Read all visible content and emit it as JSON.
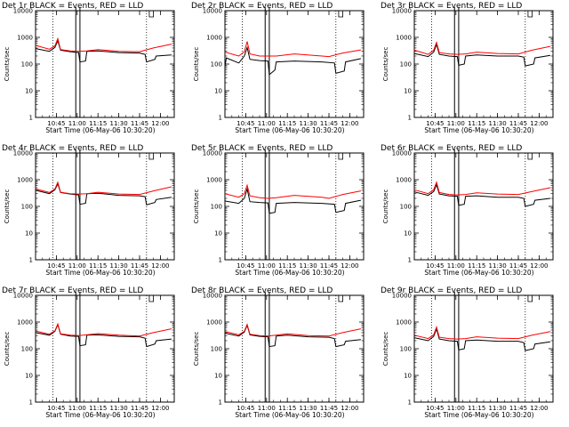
{
  "chart_data": [
    {
      "type": "line",
      "title": "Det 1r BLACK = Events, RED = LLD",
      "xlabel": "Start Time (06-May-06 10:30:20)",
      "ylabel": "Counts/sec",
      "yscale": "log",
      "ylim": [
        1,
        10000
      ],
      "xlim": [
        "10:30",
        "12:10"
      ],
      "xticks": [
        "10:45",
        "11:00",
        "11:15",
        "11:30",
        "11:45",
        "12:00"
      ],
      "series": [
        {
          "color": "#000000",
          "x": [
            "10:30",
            "10:40",
            "10:44",
            "10:46",
            "10:48",
            "10:55",
            "11:01",
            "11:02",
            "11:06",
            "11:07",
            "11:15",
            "11:30",
            "11:45",
            "11:49",
            "11:50",
            "11:56",
            "11:57",
            "12:08"
          ],
          "y": [
            380,
            300,
            420,
            750,
            330,
            290,
            270,
            120,
            130,
            300,
            310,
            270,
            260,
            230,
            120,
            150,
            200,
            220
          ]
        },
        {
          "color": "#ff0000",
          "x": [
            "10:30",
            "10:40",
            "10:44",
            "10:46",
            "10:48",
            "10:55",
            "11:01",
            "11:07",
            "11:15",
            "11:30",
            "11:45",
            "11:55",
            "12:08"
          ],
          "y": [
            500,
            360,
            480,
            900,
            350,
            310,
            300,
            310,
            350,
            300,
            290,
            400,
            560
          ]
        }
      ]
    },
    {
      "type": "line",
      "title": "Det 2r BLACK = Events, RED = LLD",
      "xlabel": "Start Time (06-May-06 10:30:20)",
      "ylabel": "Counts/sec",
      "yscale": "log",
      "ylim": [
        1,
        10000
      ],
      "xlim": [
        "10:30",
        "12:10"
      ],
      "xticks": [
        "10:45",
        "11:00",
        "11:15",
        "11:30",
        "11:45",
        "12:00"
      ],
      "series": [
        {
          "color": "#000000",
          "x": [
            "10:30",
            "10:31",
            "10:40",
            "10:44",
            "10:46",
            "10:48",
            "10:55",
            "11:01",
            "11:02",
            "11:06",
            "11:07",
            "11:20",
            "11:40",
            "11:49",
            "11:50",
            "11:56",
            "11:57",
            "12:08"
          ],
          "y": [
            80,
            170,
            110,
            200,
            420,
            150,
            135,
            130,
            40,
            60,
            120,
            130,
            120,
            110,
            45,
            55,
            120,
            160
          ]
        },
        {
          "color": "#ff0000",
          "x": [
            "10:30",
            "10:40",
            "10:44",
            "10:46",
            "10:48",
            "10:55",
            "11:01",
            "11:07",
            "11:20",
            "11:40",
            "11:45",
            "11:55",
            "12:08"
          ],
          "y": [
            280,
            200,
            290,
            700,
            240,
            200,
            200,
            200,
            240,
            200,
            190,
            260,
            340
          ]
        }
      ]
    },
    {
      "type": "line",
      "title": "Det 3r BLACK = Events, RED = LLD",
      "xlabel": "Start Time (06-May-06 10:30:20)",
      "ylabel": "Counts/sec",
      "yscale": "log",
      "ylim": [
        1,
        10000
      ],
      "xlim": [
        "10:30",
        "12:10"
      ],
      "xticks": [
        "10:45",
        "11:00",
        "11:15",
        "11:30",
        "11:45",
        "12:00"
      ],
      "series": [
        {
          "color": "#000000",
          "x": [
            "10:30",
            "10:40",
            "10:44",
            "10:46",
            "10:48",
            "10:55",
            "11:01",
            "11:02",
            "11:06",
            "11:07",
            "11:15",
            "11:30",
            "11:45",
            "11:49",
            "11:50",
            "11:56",
            "11:57",
            "12:08"
          ],
          "y": [
            250,
            190,
            280,
            550,
            230,
            200,
            190,
            90,
            100,
            200,
            220,
            200,
            200,
            180,
            85,
            100,
            170,
            210
          ]
        },
        {
          "color": "#ff0000",
          "x": [
            "10:30",
            "10:40",
            "10:44",
            "10:46",
            "10:48",
            "10:55",
            "11:01",
            "11:07",
            "11:15",
            "11:30",
            "11:45",
            "11:55",
            "12:08"
          ],
          "y": [
            330,
            230,
            330,
            650,
            270,
            240,
            230,
            240,
            280,
            250,
            240,
            330,
            460
          ]
        }
      ]
    },
    {
      "type": "line",
      "title": "Det 4r BLACK = Events, RED = LLD",
      "xlabel": "Start Time (06-May-06 10:30:20)",
      "ylabel": "Counts/sec",
      "yscale": "log",
      "ylim": [
        1,
        10000
      ],
      "xlim": [
        "10:30",
        "12:10"
      ],
      "xticks": [
        "10:45",
        "11:00",
        "11:15",
        "11:30",
        "11:45",
        "12:00"
      ],
      "series": [
        {
          "color": "#000000",
          "x": [
            "10:30",
            "10:40",
            "10:44",
            "10:46",
            "10:48",
            "10:55",
            "11:01",
            "11:02",
            "11:06",
            "11:07",
            "11:15",
            "11:30",
            "11:45",
            "11:49",
            "11:50",
            "11:56",
            "11:57",
            "12:08"
          ],
          "y": [
            400,
            300,
            420,
            700,
            330,
            290,
            270,
            120,
            130,
            300,
            310,
            260,
            250,
            230,
            115,
            140,
            180,
            220
          ]
        },
        {
          "color": "#ff0000",
          "x": [
            "10:30",
            "10:40",
            "10:44",
            "10:46",
            "10:48",
            "10:55",
            "11:01",
            "11:07",
            "11:15",
            "11:30",
            "11:45",
            "11:55",
            "12:08"
          ],
          "y": [
            450,
            330,
            450,
            800,
            340,
            300,
            290,
            300,
            340,
            290,
            280,
            380,
            540
          ]
        }
      ]
    },
    {
      "type": "line",
      "title": "Det 5r BLACK = Events, RED = LLD",
      "xlabel": "Start Time (06-May-06 10:30:20)",
      "ylabel": "Counts/sec",
      "yscale": "log",
      "ylim": [
        1,
        10000
      ],
      "xlim": [
        "10:30",
        "12:10"
      ],
      "xticks": [
        "10:45",
        "11:00",
        "11:15",
        "11:30",
        "11:45",
        "12:00"
      ],
      "series": [
        {
          "color": "#000000",
          "x": [
            "10:30",
            "10:40",
            "10:44",
            "10:46",
            "10:48",
            "10:55",
            "11:01",
            "11:02",
            "11:06",
            "11:07",
            "11:20",
            "11:40",
            "11:49",
            "11:50",
            "11:56",
            "11:57",
            "12:08"
          ],
          "y": [
            160,
            130,
            200,
            450,
            150,
            140,
            135,
            55,
            60,
            130,
            140,
            130,
            120,
            60,
            70,
            130,
            170
          ]
        },
        {
          "color": "#ff0000",
          "x": [
            "10:30",
            "10:40",
            "10:44",
            "10:46",
            "10:48",
            "10:55",
            "11:01",
            "11:07",
            "11:20",
            "11:40",
            "11:45",
            "11:55",
            "12:08"
          ],
          "y": [
            300,
            220,
            300,
            620,
            250,
            210,
            200,
            210,
            260,
            220,
            200,
            280,
            380
          ]
        }
      ]
    },
    {
      "type": "line",
      "title": "Det 6r BLACK = Events, RED = LLD",
      "xlabel": "Start Time (06-May-06 10:30:20)",
      "ylabel": "Counts/sec",
      "yscale": "log",
      "ylim": [
        1,
        10000
      ],
      "xlim": [
        "10:30",
        "12:10"
      ],
      "xticks": [
        "10:45",
        "11:00",
        "11:15",
        "11:30",
        "11:45",
        "12:00"
      ],
      "series": [
        {
          "color": "#000000",
          "x": [
            "10:30",
            "10:40",
            "10:44",
            "10:46",
            "10:48",
            "10:55",
            "11:01",
            "11:02",
            "11:06",
            "11:07",
            "11:15",
            "11:30",
            "11:45",
            "11:49",
            "11:50",
            "11:56",
            "11:57",
            "12:08"
          ],
          "y": [
            350,
            260,
            360,
            650,
            290,
            250,
            240,
            110,
            120,
            240,
            250,
            220,
            220,
            200,
            100,
            120,
            170,
            200
          ]
        },
        {
          "color": "#ff0000",
          "x": [
            "10:30",
            "10:40",
            "10:44",
            "10:46",
            "10:48",
            "10:55",
            "11:01",
            "11:07",
            "11:15",
            "11:30",
            "11:45",
            "11:55",
            "12:08"
          ],
          "y": [
            420,
            300,
            420,
            800,
            330,
            280,
            270,
            280,
            320,
            290,
            280,
            360,
            500
          ]
        }
      ]
    },
    {
      "type": "line",
      "title": "Det 7r BLACK = Events, RED = LLD",
      "xlabel": "Start Time (06-May-06 10:30:20)",
      "ylabel": "Counts/sec",
      "yscale": "log",
      "ylim": [
        1,
        10000
      ],
      "xlim": [
        "10:30",
        "12:10"
      ],
      "xticks": [
        "10:45",
        "11:00",
        "11:15",
        "11:30",
        "11:45",
        "12:00"
      ],
      "series": [
        {
          "color": "#000000",
          "x": [
            "10:30",
            "10:40",
            "10:44",
            "10:46",
            "10:48",
            "10:55",
            "11:01",
            "11:02",
            "11:06",
            "11:07",
            "11:15",
            "11:30",
            "11:45",
            "11:49",
            "11:50",
            "11:56",
            "11:57",
            "12:08"
          ],
          "y": [
            400,
            320,
            450,
            800,
            350,
            300,
            290,
            130,
            140,
            320,
            330,
            290,
            280,
            250,
            120,
            150,
            200,
            230
          ]
        },
        {
          "color": "#ff0000",
          "x": [
            "10:30",
            "10:40",
            "10:44",
            "10:46",
            "10:48",
            "10:55",
            "11:01",
            "11:07",
            "11:15",
            "11:30",
            "11:45",
            "11:55",
            "12:08"
          ],
          "y": [
            460,
            350,
            470,
            850,
            360,
            320,
            310,
            330,
            370,
            320,
            300,
            400,
            560
          ]
        }
      ]
    },
    {
      "type": "line",
      "title": "Det 8r BLACK = Events, RED = LLD",
      "xlabel": "Start Time (06-May-06 10:30:20)",
      "ylabel": "Counts/sec",
      "yscale": "log",
      "ylim": [
        1,
        10000
      ],
      "xlim": [
        "10:30",
        "12:10"
      ],
      "xticks": [
        "10:45",
        "11:00",
        "11:15",
        "11:30",
        "11:45",
        "12:00"
      ],
      "series": [
        {
          "color": "#000000",
          "x": [
            "10:30",
            "10:40",
            "10:44",
            "10:46",
            "10:48",
            "10:55",
            "11:01",
            "11:02",
            "11:06",
            "11:07",
            "11:15",
            "11:30",
            "11:45",
            "11:49",
            "11:50",
            "11:56",
            "11:57",
            "12:08"
          ],
          "y": [
            380,
            300,
            420,
            750,
            330,
            290,
            280,
            120,
            130,
            300,
            320,
            280,
            270,
            240,
            120,
            140,
            190,
            220
          ]
        },
        {
          "color": "#ff0000",
          "x": [
            "10:30",
            "10:40",
            "10:44",
            "10:46",
            "10:48",
            "10:55",
            "11:01",
            "11:07",
            "11:15",
            "11:30",
            "11:45",
            "11:55",
            "12:08"
          ],
          "y": [
            440,
            330,
            450,
            820,
            350,
            310,
            300,
            320,
            360,
            310,
            300,
            400,
            560
          ]
        }
      ]
    },
    {
      "type": "line",
      "title": "Det 9r BLACK = Events, RED = LLD",
      "xlabel": "Start Time (06-May-06 10:30:20)",
      "ylabel": "Counts/sec",
      "yscale": "log",
      "ylim": [
        1,
        10000
      ],
      "xlim": [
        "10:30",
        "12:10"
      ],
      "xticks": [
        "10:45",
        "11:00",
        "11:15",
        "11:30",
        "11:45",
        "12:00"
      ],
      "series": [
        {
          "color": "#000000",
          "x": [
            "10:30",
            "10:40",
            "10:44",
            "10:46",
            "10:48",
            "10:55",
            "11:01",
            "11:02",
            "11:06",
            "11:07",
            "11:15",
            "11:30",
            "11:45",
            "11:49",
            "11:50",
            "11:56",
            "11:57",
            "12:08"
          ],
          "y": [
            260,
            200,
            290,
            550,
            230,
            200,
            190,
            90,
            100,
            200,
            210,
            190,
            190,
            170,
            85,
            100,
            150,
            180
          ]
        },
        {
          "color": "#ff0000",
          "x": [
            "10:30",
            "10:40",
            "10:44",
            "10:46",
            "10:48",
            "10:55",
            "11:01",
            "11:07",
            "11:15",
            "11:30",
            "11:45",
            "11:55",
            "12:08"
          ],
          "y": [
            320,
            240,
            330,
            650,
            270,
            240,
            230,
            240,
            280,
            250,
            240,
            320,
            440
          ]
        }
      ]
    }
  ]
}
